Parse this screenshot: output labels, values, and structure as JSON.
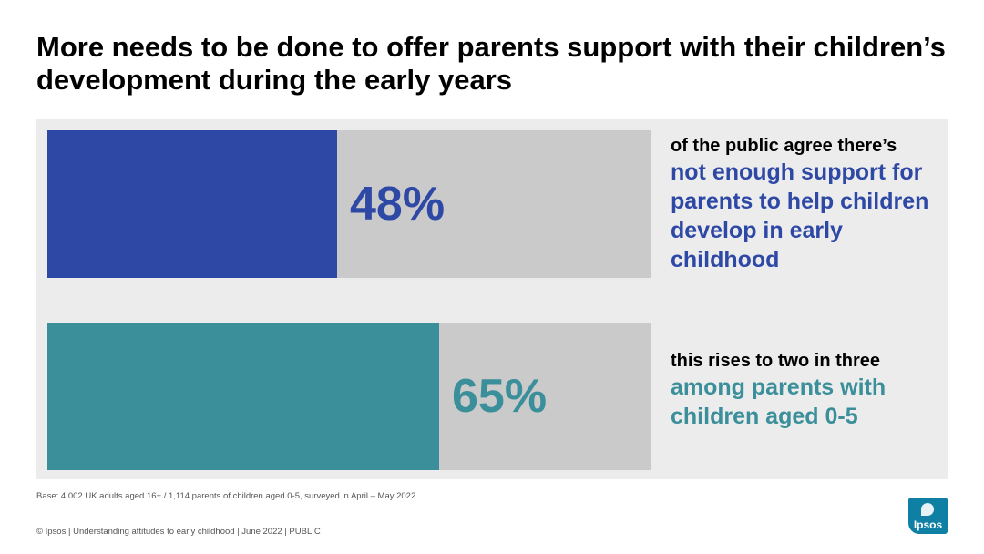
{
  "title": "More needs to be done to offer parents support with their children’s development during the early years",
  "chart_data": {
    "type": "bar",
    "orientation": "horizontal",
    "xlim": [
      0,
      100
    ],
    "bars": [
      {
        "value": 48,
        "label": "48%",
        "color": "#2e48a5",
        "lead": "of the public agree there’s",
        "highlight": "not enough support for parents to help children develop in early childhood"
      },
      {
        "value": 65,
        "label": "65%",
        "color": "#3a8f9a",
        "lead": "this rises to two in three",
        "highlight": "among parents with children aged 0-5"
      }
    ]
  },
  "base_note": "Base: 4,002 UK adults aged 16+ / 1,114 parents of children aged 0-5, surveyed in April – May 2022.",
  "footer": "© Ipsos | Understanding attitudes to early childhood | June 2022 | PUBLIC",
  "logo_text": "Ipsos"
}
